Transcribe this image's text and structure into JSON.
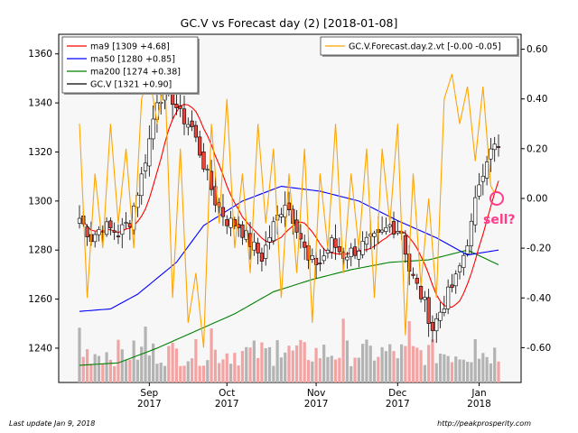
{
  "chart_data": {
    "type": "candlestick",
    "title": "GC.V vs Forecast day (2)  [2018-01-08]",
    "xlabel": "",
    "ylabel": "",
    "grid": false,
    "left_axis": {
      "ylim": [
        1226,
        1368
      ],
      "ticks": [
        1240,
        1260,
        1280,
        1300,
        1320,
        1340,
        1360
      ]
    },
    "right_axis": {
      "ylim": [
        -0.74,
        0.66
      ],
      "ticks": [
        "-0.60",
        "-0.40",
        "-0.20",
        "0.00",
        "0.20",
        "0.40",
        "0.60"
      ],
      "tick_values": [
        -0.6,
        -0.4,
        -0.2,
        0.0,
        0.2,
        0.4,
        0.6
      ]
    },
    "x_ticks": [
      {
        "label": "Sep\n2017",
        "index": 18
      },
      {
        "label": "Oct\n2017",
        "index": 38
      },
      {
        "label": "Nov\n2017",
        "index": 61
      },
      {
        "label": "Dec\n2017",
        "index": 82
      },
      {
        "label": "Jan\n2018",
        "index": 103
      }
    ],
    "n_days": 109,
    "legend_left": {
      "placement": "top-left",
      "entries": [
        {
          "label": "ma9 [1309 +4.68]",
          "color": "#ff0000"
        },
        {
          "label": "ma50 [1280 +0.85]",
          "color": "#0000ff"
        },
        {
          "label": "ma200 [1274 +0.38]",
          "color": "#008000"
        },
        {
          "label": "GC.V [1321 +0.90]",
          "color": "#000000"
        }
      ]
    },
    "legend_right": {
      "placement": "top-right",
      "entries": [
        {
          "label": "GC.V.Forecast.day.2.vt [-0.00 -0.05]",
          "color": "#ffa500"
        }
      ]
    },
    "annotation": {
      "text": "sell?",
      "color": "#ff3d8b",
      "x_index": 105,
      "y_value": 1292
    },
    "series_colors": {
      "up": "#ffffff",
      "down": "#e8443a",
      "ma9": "#ff0000",
      "ma50": "#0000ff",
      "ma200": "#008000",
      "forecast": "#ffa500",
      "volume_up": "#b3b3b3",
      "volume_down": "#f4a3a3"
    },
    "close_anchors": [
      [
        0,
        1293
      ],
      [
        3,
        1285
      ],
      [
        6,
        1290
      ],
      [
        10,
        1287
      ],
      [
        13,
        1292
      ],
      [
        16,
        1310
      ],
      [
        18,
        1325
      ],
      [
        20,
        1342
      ],
      [
        23,
        1345
      ],
      [
        26,
        1335
      ],
      [
        29,
        1330
      ],
      [
        32,
        1315
      ],
      [
        35,
        1300
      ],
      [
        38,
        1292
      ],
      [
        41,
        1290
      ],
      [
        44,
        1283
      ],
      [
        47,
        1277
      ],
      [
        50,
        1290
      ],
      [
        53,
        1300
      ],
      [
        56,
        1290
      ],
      [
        59,
        1275
      ],
      [
        62,
        1275
      ],
      [
        65,
        1283
      ],
      [
        68,
        1278
      ],
      [
        71,
        1280
      ],
      [
        74,
        1283
      ],
      [
        77,
        1285
      ],
      [
        80,
        1290
      ],
      [
        83,
        1288
      ],
      [
        85,
        1272
      ],
      [
        87,
        1265
      ],
      [
        89,
        1258
      ],
      [
        91,
        1248
      ],
      [
        93,
        1255
      ],
      [
        95,
        1262
      ],
      [
        97,
        1268
      ],
      [
        99,
        1278
      ],
      [
        101,
        1290
      ],
      [
        103,
        1308
      ],
      [
        105,
        1318
      ],
      [
        107,
        1322
      ],
      [
        108,
        1321
      ]
    ],
    "forecast_anchors": [
      [
        0,
        0.3
      ],
      [
        2,
        -0.4
      ],
      [
        4,
        0.1
      ],
      [
        6,
        -0.2
      ],
      [
        8,
        0.3
      ],
      [
        10,
        -0.1
      ],
      [
        12,
        0.2
      ],
      [
        14,
        -0.2
      ],
      [
        16,
        0.4
      ],
      [
        18,
        0.5
      ],
      [
        20,
        0.3
      ],
      [
        22,
        0.5
      ],
      [
        24,
        -0.4
      ],
      [
        26,
        0.2
      ],
      [
        28,
        -0.5
      ],
      [
        30,
        -0.3
      ],
      [
        32,
        -0.6
      ],
      [
        34,
        0.3
      ],
      [
        36,
        -0.1
      ],
      [
        38,
        0.4
      ],
      [
        40,
        -0.2
      ],
      [
        42,
        0.1
      ],
      [
        44,
        -0.3
      ],
      [
        46,
        0.3
      ],
      [
        48,
        -0.1
      ],
      [
        50,
        0.2
      ],
      [
        52,
        -0.4
      ],
      [
        54,
        0.1
      ],
      [
        56,
        -0.3
      ],
      [
        58,
        0.2
      ],
      [
        60,
        -0.5
      ],
      [
        62,
        0.1
      ],
      [
        64,
        -0.2
      ],
      [
        66,
        0.3
      ],
      [
        68,
        -0.3
      ],
      [
        70,
        0.1
      ],
      [
        72,
        -0.2
      ],
      [
        74,
        0.2
      ],
      [
        76,
        -0.4
      ],
      [
        78,
        0.2
      ],
      [
        80,
        -0.1
      ],
      [
        82,
        0.3
      ],
      [
        84,
        -0.55
      ],
      [
        86,
        0.1
      ],
      [
        88,
        -0.35
      ],
      [
        90,
        0.0
      ],
      [
        92,
        -0.4
      ],
      [
        94,
        0.4
      ],
      [
        96,
        0.5
      ],
      [
        98,
        0.3
      ],
      [
        100,
        0.45
      ],
      [
        102,
        0.15
      ],
      [
        104,
        0.45
      ],
      [
        106,
        0.05
      ],
      [
        107,
        0.02
      ]
    ],
    "ma200_anchors": [
      [
        0,
        1233
      ],
      [
        10,
        1234
      ],
      [
        20,
        1240
      ],
      [
        30,
        1247
      ],
      [
        40,
        1254
      ],
      [
        50,
        1263
      ],
      [
        60,
        1268
      ],
      [
        70,
        1272
      ],
      [
        80,
        1275
      ],
      [
        90,
        1276
      ],
      [
        100,
        1280
      ],
      [
        108,
        1274
      ]
    ],
    "ma50_anchors": [
      [
        0,
        1255
      ],
      [
        8,
        1256
      ],
      [
        15,
        1262
      ],
      [
        25,
        1275
      ],
      [
        32,
        1290
      ],
      [
        42,
        1300
      ],
      [
        52,
        1306
      ],
      [
        62,
        1304
      ],
      [
        72,
        1300
      ],
      [
        82,
        1292
      ],
      [
        92,
        1285
      ],
      [
        100,
        1278
      ],
      [
        108,
        1280
      ]
    ]
  },
  "footer": {
    "last_update": "Last update Jan  9, 2018",
    "source": "http://peakprosperity.com"
  }
}
